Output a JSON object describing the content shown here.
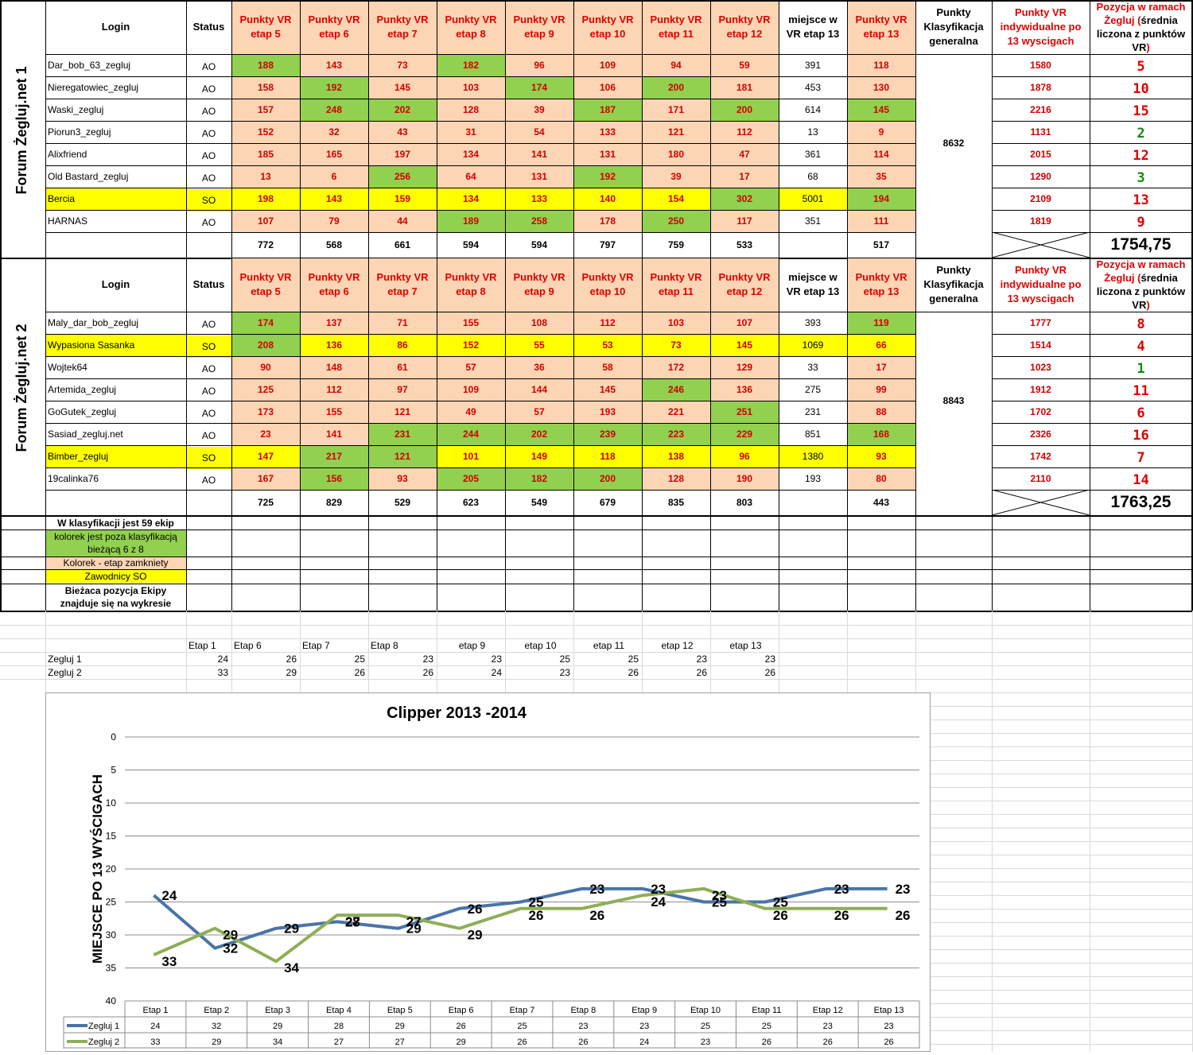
{
  "headers": {
    "login": "Login",
    "status": "Status",
    "etap_cols": [
      "Punkty VR etap 5",
      "Punkty VR etap 6",
      "Punkty VR etap 7",
      "Punkty VR etap 8",
      "Punkty VR etap 9",
      "Punkty VR etap 10",
      "Punkty VR etap 11",
      "Punkty VR etap 12"
    ],
    "miejsce": "miejsce w VR etap 13",
    "etap13": "Punkty VR etap 13",
    "klasyfikacja": "Punkty Klasyfikacja generalna",
    "indywidualne": "Punkty VR indywidualne po 13 wyscigach",
    "pozycja_line1": "Pozycja w ramach",
    "pozycja_red1": "Żegluj (",
    "pozycja_black": "średnia liczona z punktów VR",
    "pozycja_red2": ")"
  },
  "colors": {
    "green": "#92d050",
    "salmon": "#fcd5b4",
    "yellow": "#ffff00",
    "red": "#e00000",
    "rank_green": "#128a12",
    "series1": "#4a74a8",
    "series2": "#8fae56"
  },
  "groups": [
    {
      "name": "Forum Żegluj.net 1",
      "klasyfikacja": "8632",
      "total": "1754,75",
      "sums": [
        "772",
        "568",
        "661",
        "594",
        "594",
        "797",
        "759",
        "533",
        "",
        "517"
      ],
      "rows": [
        {
          "login": "Dar_bob_63_zegluj",
          "status": "AO",
          "yellow": false,
          "values": [
            "188",
            "143",
            "73",
            "182",
            "96",
            "109",
            "94",
            "59"
          ],
          "colors": [
            "g",
            "s",
            "s",
            "g",
            "s",
            "s",
            "s",
            "s"
          ],
          "miejsce": "391",
          "e13": "118",
          "e13c": "s",
          "indiv": "1580",
          "rank": "5"
        },
        {
          "login": "Nieregatowiec_zegluj",
          "status": "AO",
          "yellow": false,
          "values": [
            "158",
            "192",
            "145",
            "103",
            "174",
            "106",
            "200",
            "181"
          ],
          "colors": [
            "s",
            "g",
            "s",
            "s",
            "g",
            "s",
            "g",
            "s"
          ],
          "miejsce": "453",
          "e13": "130",
          "e13c": "s",
          "indiv": "1878",
          "rank": "10"
        },
        {
          "login": "Waski_zegluj",
          "status": "AO",
          "yellow": false,
          "values": [
            "157",
            "248",
            "202",
            "128",
            "39",
            "187",
            "171",
            "200"
          ],
          "colors": [
            "s",
            "g",
            "g",
            "s",
            "s",
            "g",
            "s",
            "g"
          ],
          "miejsce": "614",
          "e13": "145",
          "e13c": "g",
          "indiv": "2216",
          "rank": "15"
        },
        {
          "login": "Piorun3_zegluj",
          "status": "AO",
          "yellow": false,
          "values": [
            "152",
            "32",
            "43",
            "31",
            "54",
            "133",
            "121",
            "112"
          ],
          "colors": [
            "s",
            "s",
            "s",
            "s",
            "s",
            "s",
            "s",
            "s"
          ],
          "miejsce": "13",
          "e13": "9",
          "e13c": "s",
          "indiv": "1131",
          "rank": "2"
        },
        {
          "login": "Alixfriend",
          "status": "AO",
          "yellow": false,
          "values": [
            "185",
            "165",
            "197",
            "134",
            "141",
            "131",
            "180",
            "47"
          ],
          "colors": [
            "s",
            "s",
            "s",
            "s",
            "s",
            "s",
            "s",
            "s"
          ],
          "miejsce": "361",
          "e13": "114",
          "e13c": "s",
          "indiv": "2015",
          "rank": "12"
        },
        {
          "login": "Old Bastard_zegluj",
          "status": "AO",
          "yellow": false,
          "values": [
            "13",
            "6",
            "256",
            "64",
            "131",
            "192",
            "39",
            "17"
          ],
          "colors": [
            "s",
            "s",
            "g",
            "s",
            "s",
            "g",
            "s",
            "s"
          ],
          "miejsce": "68",
          "e13": "35",
          "e13c": "s",
          "indiv": "1290",
          "rank": "3"
        },
        {
          "login": "Bercia",
          "status": "SO",
          "yellow": true,
          "values": [
            "198",
            "143",
            "159",
            "134",
            "133",
            "140",
            "154",
            "302"
          ],
          "colors": [
            "y",
            "y",
            "y",
            "y",
            "y",
            "y",
            "y",
            "g"
          ],
          "miejsce": "5001",
          "e13": "194",
          "e13c": "g",
          "indiv": "2109",
          "rank": "13"
        },
        {
          "login": "HARNAS",
          "status": "AO",
          "yellow": false,
          "values": [
            "107",
            "79",
            "44",
            "189",
            "258",
            "178",
            "250",
            "117"
          ],
          "colors": [
            "s",
            "s",
            "s",
            "g",
            "g",
            "s",
            "g",
            "s"
          ],
          "miejsce": "351",
          "e13": "111",
          "e13c": "s",
          "indiv": "1819",
          "rank": "9"
        }
      ]
    },
    {
      "name": "Forum Żegluj.net 2",
      "klasyfikacja": "8843",
      "total": "1763,25",
      "sums": [
        "725",
        "829",
        "529",
        "623",
        "549",
        "679",
        "835",
        "803",
        "",
        "443"
      ],
      "rows": [
        {
          "login": "Maly_dar_bob_zegluj",
          "status": "AO",
          "yellow": false,
          "values": [
            "174",
            "137",
            "71",
            "155",
            "108",
            "112",
            "103",
            "107"
          ],
          "colors": [
            "g",
            "s",
            "s",
            "s",
            "s",
            "s",
            "s",
            "s"
          ],
          "miejsce": "393",
          "e13": "119",
          "e13c": "g",
          "indiv": "1777",
          "rank": "8"
        },
        {
          "login": "Wypasiona Sasanka",
          "status": "SO",
          "yellow": true,
          "values": [
            "208",
            "136",
            "86",
            "152",
            "55",
            "53",
            "73",
            "145"
          ],
          "colors": [
            "g",
            "y",
            "y",
            "y",
            "y",
            "y",
            "y",
            "y"
          ],
          "miejsce": "1069",
          "e13": "66",
          "e13c": "y",
          "indiv": "1514",
          "rank": "4"
        },
        {
          "login": "Wojtek64",
          "status": "AO",
          "yellow": false,
          "values": [
            "90",
            "148",
            "61",
            "57",
            "36",
            "58",
            "172",
            "129"
          ],
          "colors": [
            "s",
            "s",
            "s",
            "s",
            "s",
            "s",
            "s",
            "s"
          ],
          "miejsce": "33",
          "e13": "17",
          "e13c": "s",
          "indiv": "1023",
          "rank": "1"
        },
        {
          "login": "Artemida_zegluj",
          "status": "AO",
          "yellow": false,
          "values": [
            "125",
            "112",
            "97",
            "109",
            "144",
            "145",
            "246",
            "136"
          ],
          "colors": [
            "s",
            "s",
            "s",
            "s",
            "s",
            "s",
            "g",
            "s"
          ],
          "miejsce": "275",
          "e13": "99",
          "e13c": "s",
          "indiv": "1912",
          "rank": "11"
        },
        {
          "login": "GoGutek_zegluj",
          "status": "AO",
          "yellow": false,
          "values": [
            "173",
            "155",
            "121",
            "49",
            "57",
            "193",
            "221",
            "251"
          ],
          "colors": [
            "s",
            "s",
            "s",
            "s",
            "s",
            "s",
            "s",
            "g"
          ],
          "miejsce": "231",
          "e13": "88",
          "e13c": "s",
          "indiv": "1702",
          "rank": "6"
        },
        {
          "login": "Sasiad_zegluj.net",
          "status": "AO",
          "yellow": false,
          "values": [
            "23",
            "141",
            "231",
            "244",
            "202",
            "239",
            "223",
            "229"
          ],
          "colors": [
            "s",
            "s",
            "g",
            "g",
            "g",
            "g",
            "g",
            "g"
          ],
          "miejsce": "851",
          "e13": "168",
          "e13c": "g",
          "indiv": "2326",
          "rank": "16"
        },
        {
          "login": "Bimber_zegluj",
          "status": "SO",
          "yellow": true,
          "values": [
            "147",
            "217",
            "121",
            "101",
            "149",
            "118",
            "138",
            "96"
          ],
          "colors": [
            "y",
            "g",
            "g",
            "y",
            "y",
            "y",
            "y",
            "y"
          ],
          "miejsce": "1380",
          "e13": "93",
          "e13c": "y",
          "indiv": "1742",
          "rank": "7"
        },
        {
          "login": "19calinka76",
          "status": "AO",
          "yellow": false,
          "values": [
            "167",
            "156",
            "93",
            "205",
            "182",
            "200",
            "128",
            "190"
          ],
          "colors": [
            "s",
            "g",
            "s",
            "g",
            "g",
            "g",
            "s",
            "s"
          ],
          "miejsce": "193",
          "e13": "80",
          "e13c": "s",
          "indiv": "2110",
          "rank": "14"
        }
      ]
    }
  ],
  "legend": {
    "info": "W klasyfikacji jest 59 ekip",
    "green": "kolorek jest  poza klasyfikacją bieżącą 6 z 8",
    "salmon": "Kolorek - etap zamkniety",
    "yellow": "Zawodnicy SO",
    "note": "Bieżaca pozycja Ekipy znajduje się na wykresie"
  },
  "mini_table": {
    "headers": [
      "Etap 1",
      "Etap 6",
      "Etap 7",
      "Etap 8",
      "etap 9",
      "etap 10",
      "etap 11",
      "etap 12",
      "etap 13"
    ],
    "rows": [
      {
        "label": "Zegluj 1",
        "values": [
          "24",
          "26",
          "25",
          "23",
          "23",
          "25",
          "25",
          "23",
          "23"
        ]
      },
      {
        "label": "Zegluj 2",
        "values": [
          "33",
          "29",
          "26",
          "26",
          "24",
          "23",
          "26",
          "26",
          "26"
        ]
      }
    ]
  },
  "chart_data": {
    "type": "line",
    "title": "Clipper 2013 -2014",
    "xlabel": "",
    "ylabel": "MIEJSCE PO 13 WYŚCIGACH",
    "ylim": [
      0,
      40
    ],
    "y_inverted": true,
    "yticks": [
      "0",
      "5",
      "10",
      "15",
      "20",
      "25",
      "30",
      "35",
      "40"
    ],
    "grid": true,
    "legend": "data-table",
    "categories": [
      "Etap 1",
      "Etap 2",
      "Etap 3",
      "Etap 4",
      "Etap 5",
      "Etap 6",
      "Etap 7",
      "Etap 8",
      "Etap 9",
      "Etap 10",
      "Etap 11",
      "Etap 12",
      "Etap 13"
    ],
    "series": [
      {
        "name": "Zegluj 1",
        "values": [
          24,
          32,
          29,
          28,
          29,
          26,
          25,
          23,
          23,
          25,
          25,
          23,
          23
        ]
      },
      {
        "name": "Zegluj 2",
        "values": [
          33,
          29,
          34,
          27,
          27,
          29,
          26,
          26,
          24,
          23,
          26,
          26,
          26
        ]
      }
    ]
  }
}
